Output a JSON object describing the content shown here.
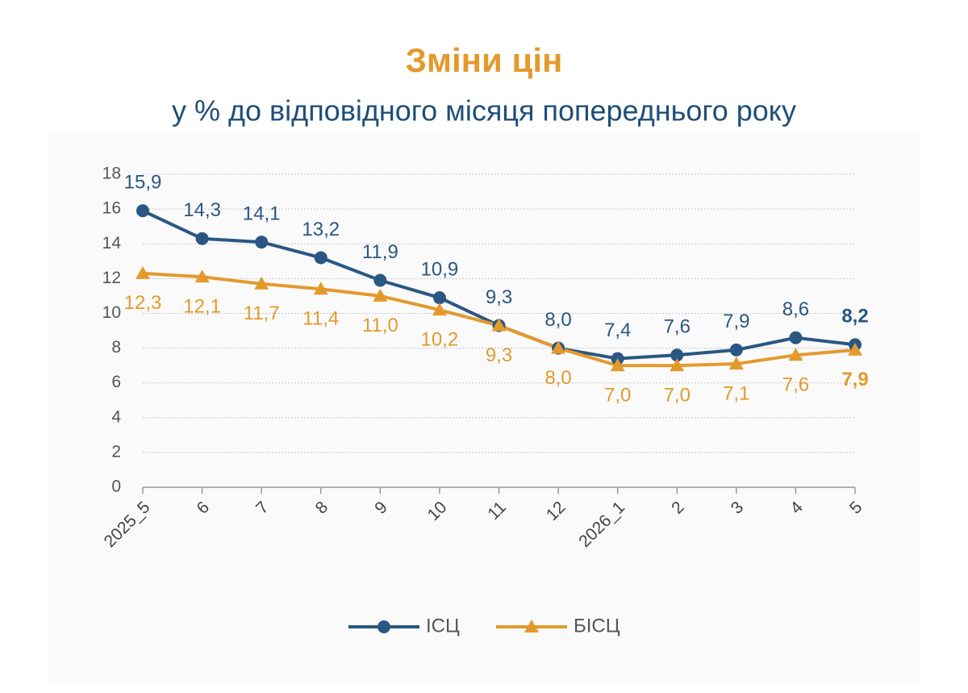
{
  "chart_data": {
    "type": "line",
    "title": "Зміни цін",
    "subtitle": "у % до відповідного місяця попереднього року",
    "categories": [
      "2025_5",
      "6",
      "7",
      "8",
      "9",
      "10",
      "11",
      "12",
      "2026_1",
      "2",
      "3",
      "4",
      "5"
    ],
    "series": [
      {
        "name": "ІСЦ",
        "color": "#2a5783",
        "marker": "circle",
        "values": [
          15.9,
          14.3,
          14.1,
          13.2,
          11.9,
          10.9,
          9.3,
          8.0,
          7.4,
          7.6,
          7.9,
          8.6,
          8.2
        ],
        "value_labels": [
          "15,9",
          "14,3",
          "14,1",
          "13,2",
          "11,9",
          "10,9",
          "9,3",
          "8,0",
          "7,4",
          "7,6",
          "7,9",
          "8,6",
          "8,2"
        ]
      },
      {
        "name": "БІСЦ",
        "color": "#e39a2d",
        "marker": "triangle",
        "values": [
          12.3,
          12.1,
          11.7,
          11.4,
          11.0,
          10.2,
          9.3,
          8.0,
          7.0,
          7.0,
          7.1,
          7.6,
          7.9
        ],
        "value_labels": [
          "12,3",
          "12,1",
          "11,7",
          "11,4",
          "11,0",
          "10,2",
          "9,3",
          "8,0",
          "7,0",
          "7,0",
          "7,1",
          "7,6",
          "7,9"
        ]
      }
    ],
    "ylim": [
      0,
      18
    ],
    "yticks": [
      0,
      2,
      4,
      6,
      8,
      10,
      12,
      14,
      16,
      18
    ],
    "grid": true
  }
}
